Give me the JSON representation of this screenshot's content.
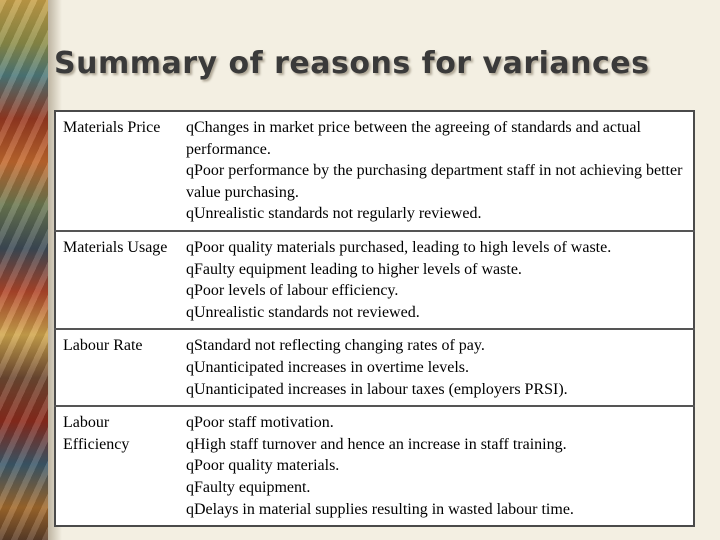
{
  "title": "Summary of reasons for variances",
  "rows": [
    {
      "label": "Materials Price",
      "items": [
        "Changes in market price between the agreeing of standards and actual performance.",
        "Poor performance by the purchasing department staff in not achieving better value purchasing.",
        "Unrealistic standards not regularly reviewed."
      ]
    },
    {
      "label": "Materials Usage",
      "items": [
        "Poor quality materials purchased, leading to high levels of waste.",
        "Faulty equipment leading to higher levels of waste.",
        "Poor levels of labour efficiency.",
        "Unrealistic standards not reviewed."
      ]
    },
    {
      "label": "Labour Rate",
      "items": [
        "Standard not reflecting changing rates of pay.",
        "Unanticipated increases in overtime levels.",
        "Unanticipated increases in labour taxes (employers PRSI)."
      ]
    },
    {
      "label": "Labour Efficiency",
      "items": [
        "Poor staff motivation.",
        "High staff turnover and hence an increase in staff training.",
        "Poor quality materials.",
        "Faulty equipment.",
        "Delays in material supplies resulting in wasted labour time."
      ]
    }
  ]
}
